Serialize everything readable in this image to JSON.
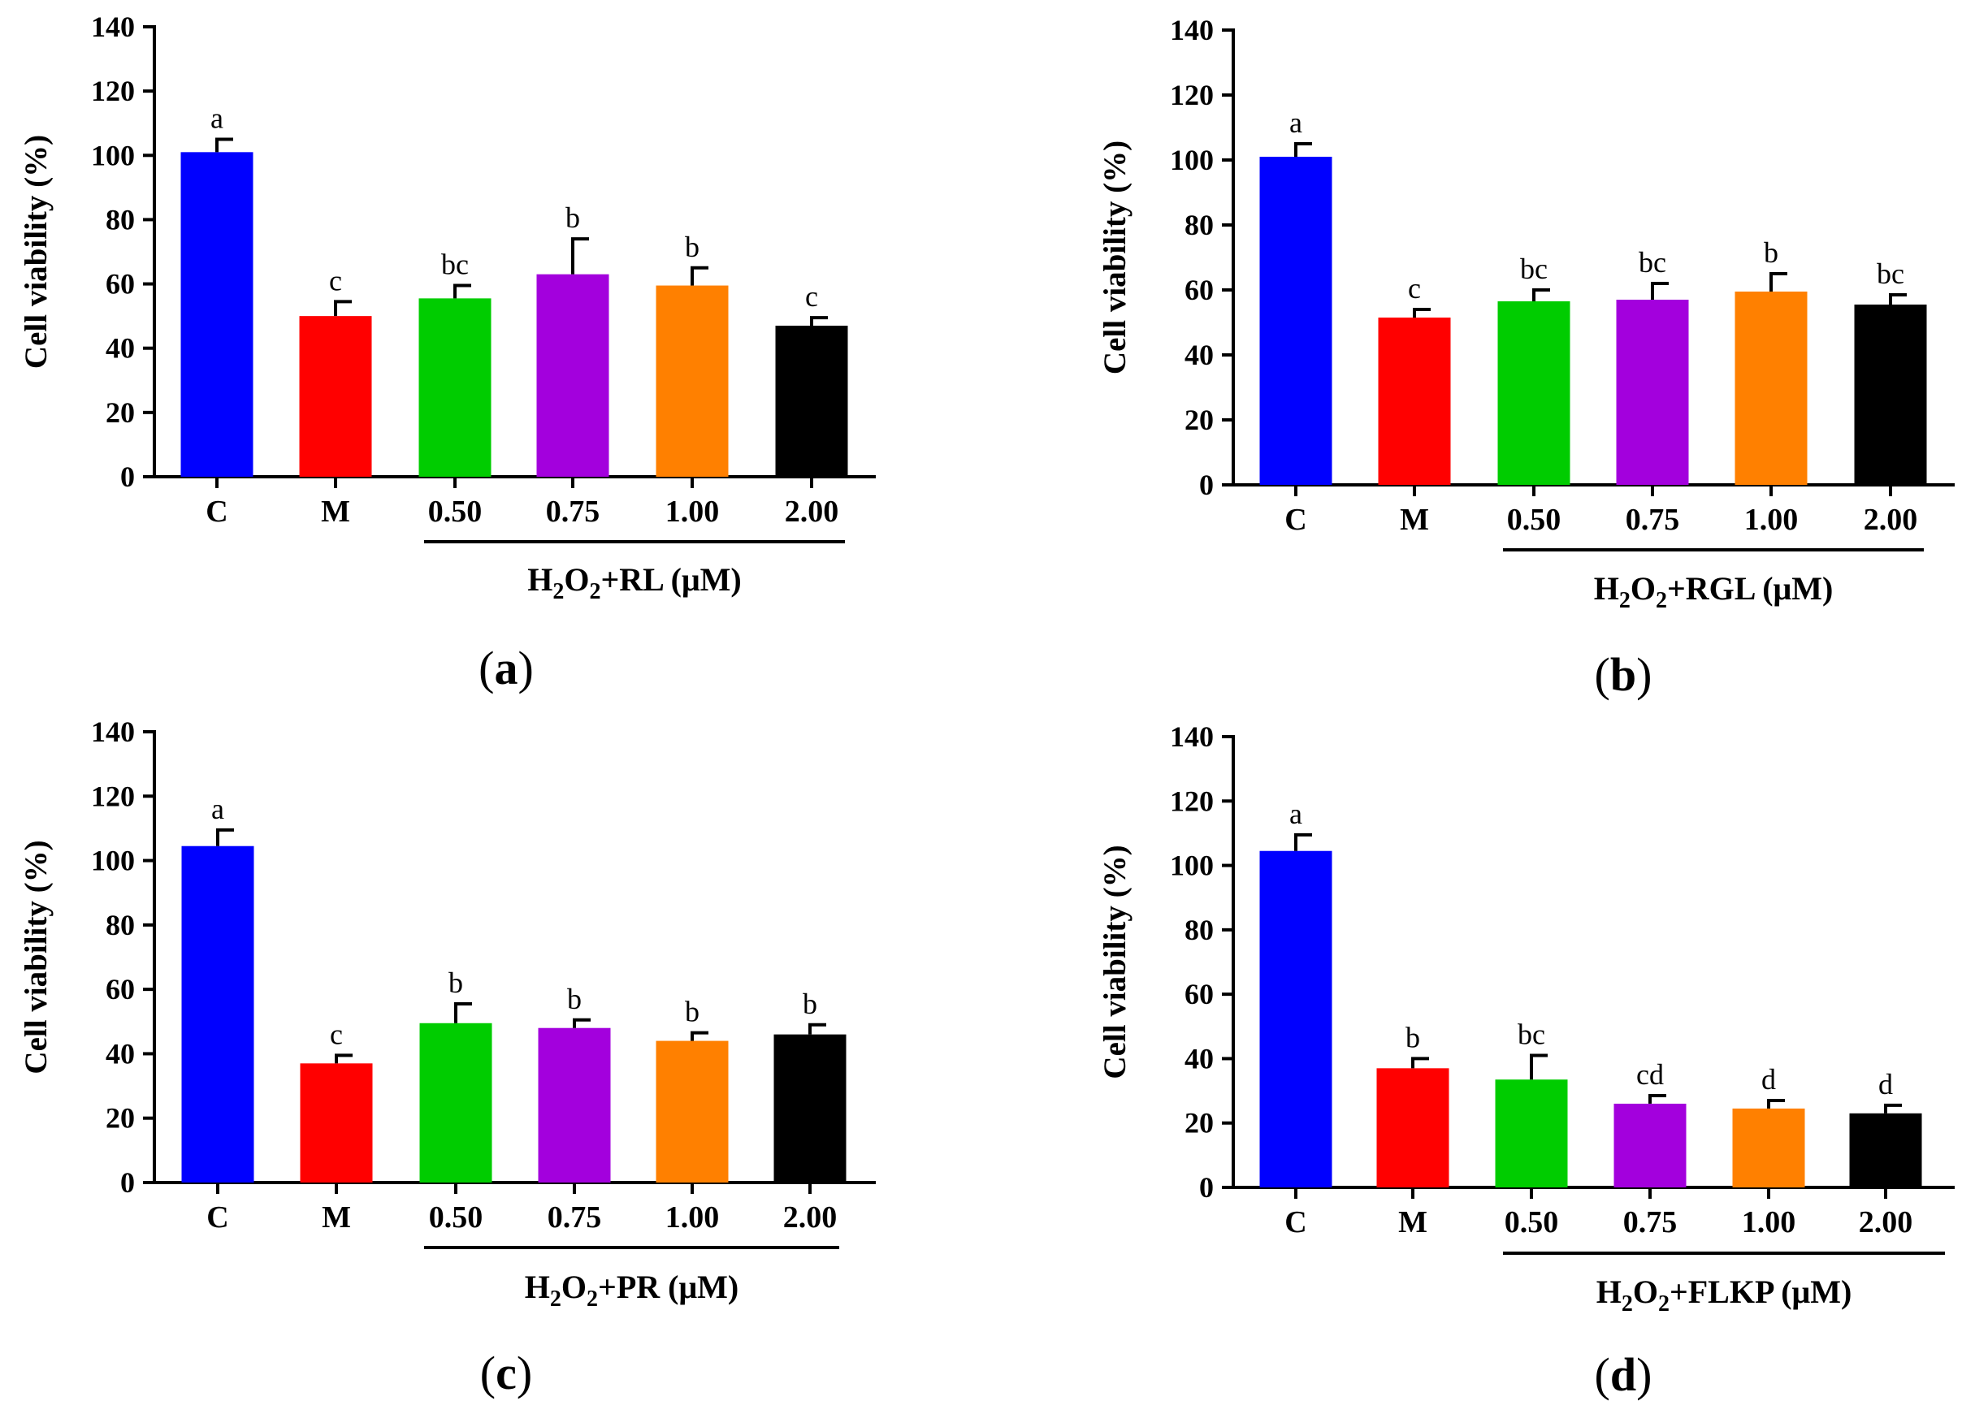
{
  "colors": {
    "C": "#0000ff",
    "M": "#ff0000",
    "0.50": "#00cc00",
    "0.75": "#a300dd",
    "1.00": "#ff8000",
    "2.00": "#000000",
    "axis": "#000000"
  },
  "chart_data": [
    {
      "type": "bar",
      "panel": "(a)",
      "panel_letter": "a",
      "ylabel": "Cell viability (%)",
      "ylim": [
        0,
        140
      ],
      "yticks": [
        "0",
        "20",
        "40",
        "60",
        "80",
        "100",
        "120",
        "140"
      ],
      "categories": [
        "C",
        "M",
        "0.50",
        "0.75",
        "1.00",
        "2.00"
      ],
      "group_label": {
        "base": "H",
        "sub1": "2",
        "mid": "O",
        "sub2": "2",
        "suffix": "+RL (μM)"
      },
      "values": [
        101,
        50,
        55.5,
        63,
        59.5,
        47
      ],
      "errors": [
        4,
        4.5,
        4,
        11,
        5.5,
        2.5
      ],
      "significance": [
        "a",
        "c",
        "bc",
        "b",
        "b",
        "c"
      ]
    },
    {
      "type": "bar",
      "panel": "(b)",
      "panel_letter": "b",
      "ylabel": "Cell viability (%)",
      "ylim": [
        0,
        140
      ],
      "yticks": [
        "0",
        "20",
        "40",
        "60",
        "80",
        "100",
        "120",
        "140"
      ],
      "categories": [
        "C",
        "M",
        "0.50",
        "0.75",
        "1.00",
        "2.00"
      ],
      "group_label": {
        "base": "H",
        "sub1": "2",
        "mid": "O",
        "sub2": "2",
        "suffix": "+RGL (μM)"
      },
      "values": [
        101,
        51.5,
        56.5,
        57,
        59.5,
        55.5
      ],
      "errors": [
        4,
        2.5,
        3.5,
        5,
        5.5,
        3
      ],
      "significance": [
        "a",
        "c",
        "bc",
        "bc",
        "b",
        "bc"
      ]
    },
    {
      "type": "bar",
      "panel": "(c)",
      "panel_letter": "c",
      "ylabel": "Cell viability (%)",
      "ylim": [
        0,
        140
      ],
      "yticks": [
        "0",
        "20",
        "40",
        "60",
        "80",
        "100",
        "120",
        "140"
      ],
      "categories": [
        "C",
        "M",
        "0.50",
        "0.75",
        "1.00",
        "2.00"
      ],
      "group_label": {
        "base": "H",
        "sub1": "2",
        "mid": "O",
        "sub2": "2",
        "suffix": "+PR (μM)"
      },
      "values": [
        104.5,
        37,
        49.5,
        48,
        44,
        46
      ],
      "errors": [
        5,
        2.5,
        6,
        2.5,
        2.5,
        3
      ],
      "significance": [
        "a",
        "c",
        "b",
        "b",
        "b",
        "b"
      ]
    },
    {
      "type": "bar",
      "panel": "(d)",
      "panel_letter": "d",
      "ylabel": "Cell viability (%)",
      "ylim": [
        0,
        140
      ],
      "yticks": [
        "0",
        "20",
        "40",
        "60",
        "80",
        "100",
        "120",
        "140"
      ],
      "categories": [
        "C",
        "M",
        "0.50",
        "0.75",
        "1.00",
        "2.00"
      ],
      "group_label": {
        "base": "H",
        "sub1": "2",
        "mid": "O",
        "sub2": "2",
        "suffix": "+FLKP (μM)"
      },
      "values": [
        104.5,
        37,
        33.5,
        26,
        24.5,
        23
      ],
      "errors": [
        5,
        3,
        7.5,
        2.5,
        2.5,
        2.5
      ],
      "significance": [
        "a",
        "b",
        "bc",
        "cd",
        "d",
        "d"
      ]
    }
  ]
}
